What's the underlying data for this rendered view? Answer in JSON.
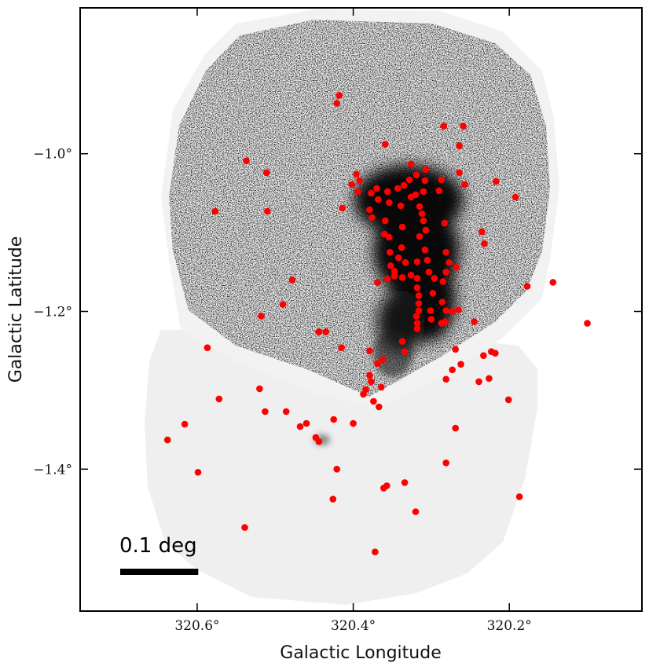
{
  "chart_data": {
    "type": "scatter",
    "title": "",
    "xlabel": "Galactic Longitude",
    "ylabel": "Galactic Latitude",
    "xlim": [
      320.75,
      320.03
    ],
    "ylim": [
      -1.58,
      -0.815
    ],
    "x_ticks": [
      {
        "value": 320.6,
        "label": "320.6°"
      },
      {
        "value": 320.4,
        "label": "320.4°"
      },
      {
        "value": 320.2,
        "label": "320.2°"
      }
    ],
    "y_ticks": [
      {
        "value": -1.0,
        "label": "−1.0°"
      },
      {
        "value": -1.2,
        "label": "−1.2°"
      },
      {
        "value": -1.4,
        "label": "−1.4°"
      }
    ],
    "grid": false,
    "scale_bar": {
      "label": "0.1 deg",
      "length_deg": 0.1
    },
    "colors": {
      "points": "#ff0000",
      "background_image": "grayscale",
      "frame": "#000000"
    },
    "series": [
      {
        "marker": "circle",
        "color": "#ff0000",
        "points": [
          [
            320.418,
            -0.926
          ],
          [
            320.421,
            -0.936
          ],
          [
            320.284,
            -0.965
          ],
          [
            320.259,
            -0.965
          ],
          [
            320.359,
            -0.988
          ],
          [
            320.264,
            -0.99
          ],
          [
            320.537,
            -1.009
          ],
          [
            320.511,
            -1.024
          ],
          [
            320.326,
            -1.013
          ],
          [
            320.264,
            -1.024
          ],
          [
            320.396,
            -1.026
          ],
          [
            320.392,
            -1.034
          ],
          [
            320.402,
            -1.039
          ],
          [
            320.394,
            -1.048
          ],
          [
            320.37,
            -1.044
          ],
          [
            320.335,
            -1.04
          ],
          [
            320.328,
            -1.033
          ],
          [
            320.319,
            -1.027
          ],
          [
            320.307,
            -1.02
          ],
          [
            320.308,
            -1.034
          ],
          [
            320.287,
            -1.033
          ],
          [
            320.257,
            -1.039
          ],
          [
            320.217,
            -1.035
          ],
          [
            320.192,
            -1.055
          ],
          [
            320.377,
            -1.05
          ],
          [
            320.356,
            -1.048
          ],
          [
            320.343,
            -1.044
          ],
          [
            320.326,
            -1.055
          ],
          [
            320.32,
            -1.052
          ],
          [
            320.31,
            -1.048
          ],
          [
            320.29,
            -1.047
          ],
          [
            320.414,
            -1.069
          ],
          [
            320.368,
            -1.058
          ],
          [
            320.354,
            -1.062
          ],
          [
            320.339,
            -1.066
          ],
          [
            320.315,
            -1.067
          ],
          [
            320.577,
            -1.073
          ],
          [
            320.51,
            -1.073
          ],
          [
            320.379,
            -1.071
          ],
          [
            320.376,
            -1.081
          ],
          [
            320.359,
            -1.085
          ],
          [
            320.337,
            -1.093
          ],
          [
            320.312,
            -1.076
          ],
          [
            320.31,
            -1.085
          ],
          [
            320.307,
            -1.097
          ],
          [
            320.283,
            -1.088
          ],
          [
            320.235,
            -1.099
          ],
          [
            320.232,
            -1.114
          ],
          [
            320.36,
            -1.102
          ],
          [
            320.354,
            -1.106
          ],
          [
            320.338,
            -1.119
          ],
          [
            320.315,
            -1.105
          ],
          [
            320.308,
            -1.122
          ],
          [
            320.281,
            -1.125
          ],
          [
            320.353,
            -1.125
          ],
          [
            320.342,
            -1.132
          ],
          [
            320.352,
            -1.142
          ],
          [
            320.347,
            -1.149
          ],
          [
            320.333,
            -1.138
          ],
          [
            320.318,
            -1.137
          ],
          [
            320.305,
            -1.135
          ],
          [
            320.277,
            -1.138
          ],
          [
            320.268,
            -1.144
          ],
          [
            320.478,
            -1.16
          ],
          [
            320.369,
            -1.163
          ],
          [
            320.356,
            -1.159
          ],
          [
            320.347,
            -1.155
          ],
          [
            320.337,
            -1.157
          ],
          [
            320.326,
            -1.154
          ],
          [
            320.318,
            -1.158
          ],
          [
            320.303,
            -1.15
          ],
          [
            320.296,
            -1.158
          ],
          [
            320.285,
            -1.162
          ],
          [
            320.281,
            -1.15
          ],
          [
            320.177,
            -1.168
          ],
          [
            320.144,
            -1.163
          ],
          [
            320.318,
            -1.17
          ],
          [
            320.316,
            -1.18
          ],
          [
            320.298,
            -1.177
          ],
          [
            320.286,
            -1.188
          ],
          [
            320.49,
            -1.191
          ],
          [
            320.316,
            -1.19
          ],
          [
            320.316,
            -1.199
          ],
          [
            320.301,
            -1.199
          ],
          [
            320.281,
            -1.199
          ],
          [
            320.273,
            -1.2
          ],
          [
            320.265,
            -1.198
          ],
          [
            320.518,
            -1.206
          ],
          [
            320.319,
            -1.206
          ],
          [
            320.318,
            -1.215
          ],
          [
            320.3,
            -1.21
          ],
          [
            320.287,
            -1.215
          ],
          [
            320.282,
            -1.213
          ],
          [
            320.245,
            -1.213
          ],
          [
            320.1,
            -1.215
          ],
          [
            320.444,
            -1.226
          ],
          [
            320.435,
            -1.226
          ],
          [
            320.318,
            -1.222
          ],
          [
            320.337,
            -1.238
          ],
          [
            320.587,
            -1.246
          ],
          [
            320.415,
            -1.246
          ],
          [
            320.379,
            -1.25
          ],
          [
            320.269,
            -1.248
          ],
          [
            320.334,
            -1.251
          ],
          [
            320.223,
            -1.251
          ],
          [
            320.218,
            -1.253
          ],
          [
            320.233,
            -1.256
          ],
          [
            320.362,
            -1.261
          ],
          [
            320.369,
            -1.266
          ],
          [
            320.262,
            -1.267
          ],
          [
            320.273,
            -1.274
          ],
          [
            320.379,
            -1.281
          ],
          [
            320.377,
            -1.289
          ],
          [
            320.281,
            -1.286
          ],
          [
            320.226,
            -1.285
          ],
          [
            320.239,
            -1.289
          ],
          [
            320.364,
            -1.296
          ],
          [
            320.52,
            -1.298
          ],
          [
            320.384,
            -1.299
          ],
          [
            320.387,
            -1.305
          ],
          [
            320.572,
            -1.311
          ],
          [
            320.201,
            -1.312
          ],
          [
            320.374,
            -1.314
          ],
          [
            320.367,
            -1.321
          ],
          [
            320.513,
            -1.327
          ],
          [
            320.486,
            -1.327
          ],
          [
            320.425,
            -1.337
          ],
          [
            320.46,
            -1.342
          ],
          [
            320.4,
            -1.342
          ],
          [
            320.616,
            -1.343
          ],
          [
            320.468,
            -1.346
          ],
          [
            320.269,
            -1.348
          ],
          [
            320.448,
            -1.36
          ],
          [
            320.444,
            -1.365
          ],
          [
            320.638,
            -1.363
          ],
          [
            320.281,
            -1.392
          ],
          [
            320.421,
            -1.4
          ],
          [
            320.599,
            -1.404
          ],
          [
            320.334,
            -1.417
          ],
          [
            320.357,
            -1.421
          ],
          [
            320.361,
            -1.424
          ],
          [
            320.187,
            -1.435
          ],
          [
            320.426,
            -1.438
          ],
          [
            320.32,
            -1.454
          ],
          [
            320.539,
            -1.474
          ],
          [
            320.372,
            -1.505
          ]
        ]
      }
    ]
  }
}
